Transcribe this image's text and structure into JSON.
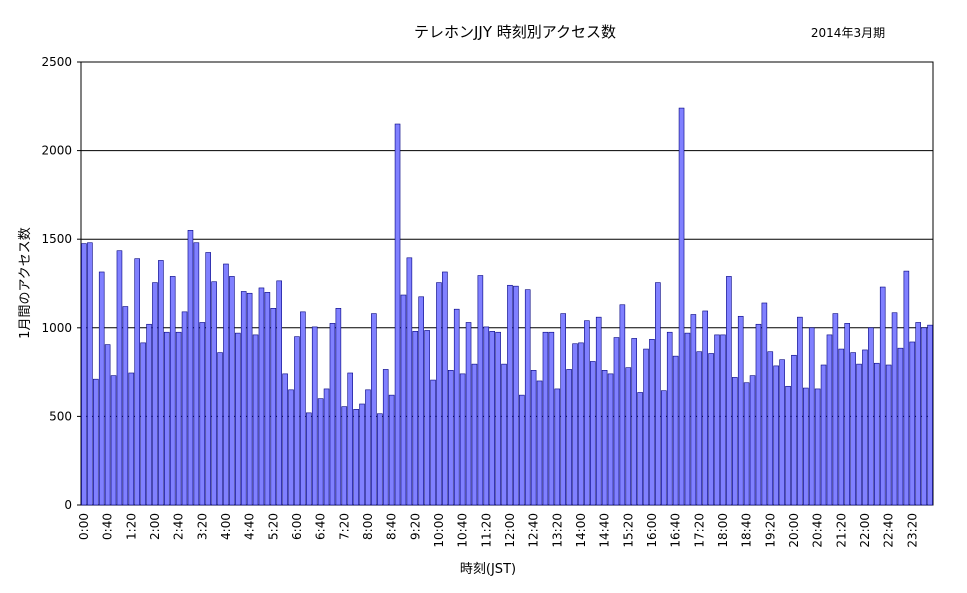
{
  "chart_data": {
    "type": "bar",
    "title": "テレホンJJY  時刻別アクセス数",
    "period": "2014年3月期",
    "xlabel": "時刻(JST)",
    "ylabel": "1月間のアクセス数",
    "ylim": [
      0,
      2500
    ],
    "yticks": [
      "0",
      "500",
      "1000",
      "1500",
      "2000",
      "2500"
    ],
    "x_tick_labels": [
      "0:00",
      "0:40",
      "1:20",
      "2:00",
      "2:40",
      "3:20",
      "4:00",
      "4:40",
      "5:20",
      "6:00",
      "6:40",
      "7:20",
      "8:00",
      "8:40",
      "9:20",
      "10:00",
      "10:40",
      "11:20",
      "12:00",
      "12:40",
      "13:20",
      "14:00",
      "14:40",
      "15:20",
      "16:00",
      "16:40",
      "17:20",
      "18:00",
      "18:40",
      "19:20",
      "20:00",
      "20:40",
      "21:20",
      "22:00",
      "22:40",
      "23:20"
    ],
    "grid": "horizontal",
    "bar_color": "#8080ff",
    "bar_edge_color": "#000080",
    "values": [
      1475,
      1480,
      710,
      1315,
      905,
      730,
      1435,
      1120,
      745,
      1390,
      915,
      1020,
      1255,
      1380,
      975,
      1290,
      975,
      1090,
      1550,
      1480,
      1030,
      1425,
      1260,
      860,
      1360,
      1290,
      970,
      1205,
      1195,
      960,
      1225,
      1200,
      1110,
      1265,
      740,
      650,
      950,
      1090,
      520,
      1005,
      600,
      655,
      1025,
      1110,
      555,
      745,
      540,
      570,
      650,
      1080,
      515,
      765,
      620,
      2150,
      1185,
      1395,
      980,
      1175,
      985,
      705,
      1255,
      1315,
      760,
      1105,
      740,
      1030,
      795,
      1295,
      1005,
      980,
      975,
      795,
      1240,
      1235,
      620,
      1215,
      760,
      700,
      975,
      975,
      655,
      1080,
      765,
      910,
      915,
      1040,
      810,
      1060,
      760,
      740,
      945,
      1130,
      775,
      940,
      635,
      880,
      935,
      1255,
      645,
      975,
      840,
      2240,
      970,
      1075,
      865,
      1095,
      855,
      960,
      960,
      1290,
      720,
      1065,
      690,
      730,
      1020,
      1140,
      865,
      785,
      820,
      670,
      845,
      1060,
      660,
      1000,
      655,
      790,
      960,
      1080,
      880,
      1025,
      860,
      795,
      875,
      1000,
      800,
      1230,
      790,
      1085,
      885,
      1320,
      920,
      1030,
      1000,
      1015
    ]
  }
}
